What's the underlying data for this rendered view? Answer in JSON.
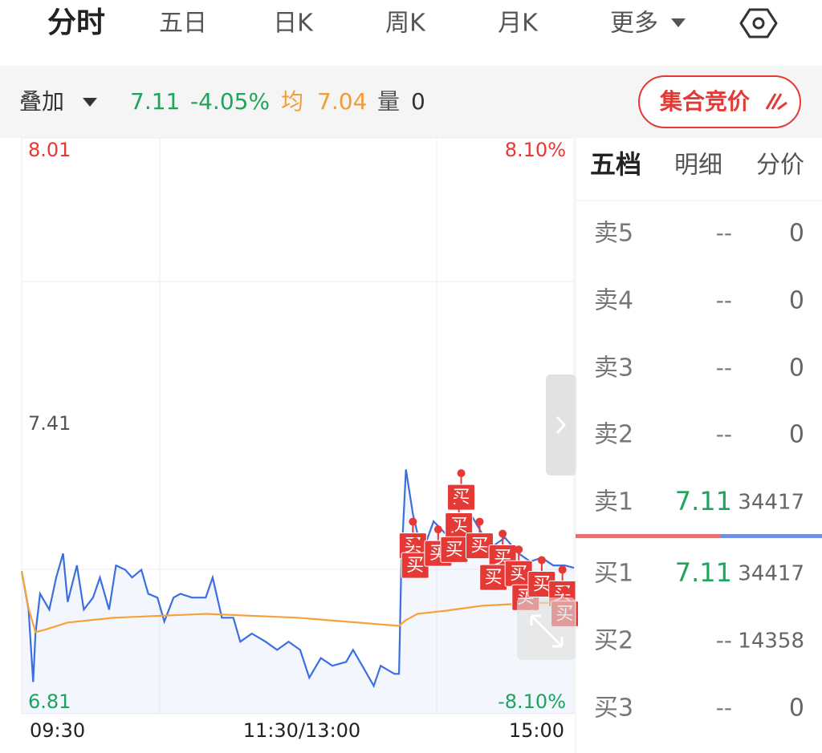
{
  "tabs": [
    "分时",
    "五日",
    "日K",
    "周K",
    "月K",
    "更多"
  ],
  "quote_bar": {
    "overlay": "叠加",
    "price": "7.11",
    "change": "-4.05%",
    "avg_label": "均",
    "avg": "7.04",
    "volume_label": "量",
    "volume": "0",
    "auction_button": "集合竞价"
  },
  "chart_data": {
    "type": "line",
    "x": [
      0,
      3,
      5,
      6,
      8,
      12,
      15,
      18,
      20,
      24,
      27,
      31,
      34,
      38,
      41,
      45,
      48,
      52,
      55,
      59,
      62,
      66,
      69,
      74,
      80,
      83,
      87,
      92,
      95,
      100,
      106,
      111,
      116,
      121,
      125,
      130,
      135,
      141,
      144,
      148,
      153,
      156,
      162,
      164,
      165,
      167,
      170,
      174,
      179,
      184,
      189,
      195,
      200,
      205,
      210,
      216,
      221,
      226,
      231,
      236,
      240
    ],
    "series": [
      {
        "color": "#3b6fe0",
        "values": [
          7.107,
          7.027,
          6.876,
          6.977,
          7.06,
          7.027,
          7.094,
          7.144,
          7.043,
          7.119,
          7.027,
          7.052,
          7.094,
          7.027,
          7.119,
          7.11,
          7.094,
          7.11,
          7.06,
          7.052,
          7.002,
          7.052,
          7.06,
          7.052,
          7.052,
          7.094,
          7.01,
          7.01,
          6.96,
          6.977,
          6.96,
          6.943,
          6.96,
          6.943,
          6.885,
          6.926,
          6.91,
          6.918,
          6.943,
          6.91,
          6.868,
          6.91,
          6.893,
          6.893,
          7.127,
          7.319,
          7.227,
          7.144,
          7.211,
          7.186,
          7.194,
          7.227,
          7.186,
          7.16,
          7.177,
          7.144,
          7.127,
          7.135,
          7.119,
          7.119,
          7.114
        ]
      },
      {
        "color": "#f7a13b",
        "x": [
          0,
          3,
          6,
          10,
          20,
          40,
          80,
          120,
          164,
          167,
          172,
          185,
          200,
          220,
          240
        ],
        "values": [
          7.107,
          7.03,
          6.98,
          6.985,
          7.0,
          7.01,
          7.018,
          7.01,
          6.993,
          7.005,
          7.018,
          7.025,
          7.035,
          7.04,
          7.043
        ]
      }
    ],
    "signals": {
      "label": "买",
      "color": "#e53935",
      "x": [
        191,
        190,
        170,
        171,
        181,
        188,
        199,
        209,
        205,
        216,
        219,
        226,
        235,
        236
      ],
      "y": [
        7.261,
        7.202,
        7.16,
        7.119,
        7.144,
        7.152,
        7.16,
        7.135,
        7.094,
        7.102,
        7.052,
        7.08,
        7.06,
        7.018
      ]
    },
    "xlim": [
      0,
      240
    ],
    "xticks": [
      {
        "value": 0,
        "label": "09:30"
      },
      {
        "value": 120,
        "label": "11:30/13:00"
      },
      {
        "value": 240,
        "label": "15:00"
      }
    ],
    "ylim": [
      6.81,
      8.01
    ],
    "yticks": [
      6.81,
      7.41,
      8.01
    ],
    "y2lim": [
      -8.1,
      8.1
    ],
    "y2ticks": [
      {
        "value": -8.1,
        "label": "-8.10%"
      },
      {
        "value": 8.1,
        "label": "8.10%"
      }
    ]
  },
  "order_book": {
    "tabs": [
      "五档",
      "明细",
      "分价"
    ],
    "rows": [
      [
        "卖5",
        "--",
        "0"
      ],
      [
        "卖4",
        "--",
        "0"
      ],
      [
        "卖3",
        "--",
        "0"
      ],
      [
        "卖2",
        "--",
        "0"
      ],
      [
        "卖1",
        "7.11",
        "34417"
      ],
      [
        "买1",
        "7.11",
        "34417"
      ],
      [
        "买2",
        "--",
        "14358"
      ],
      [
        "买3",
        "--",
        "0"
      ]
    ]
  }
}
